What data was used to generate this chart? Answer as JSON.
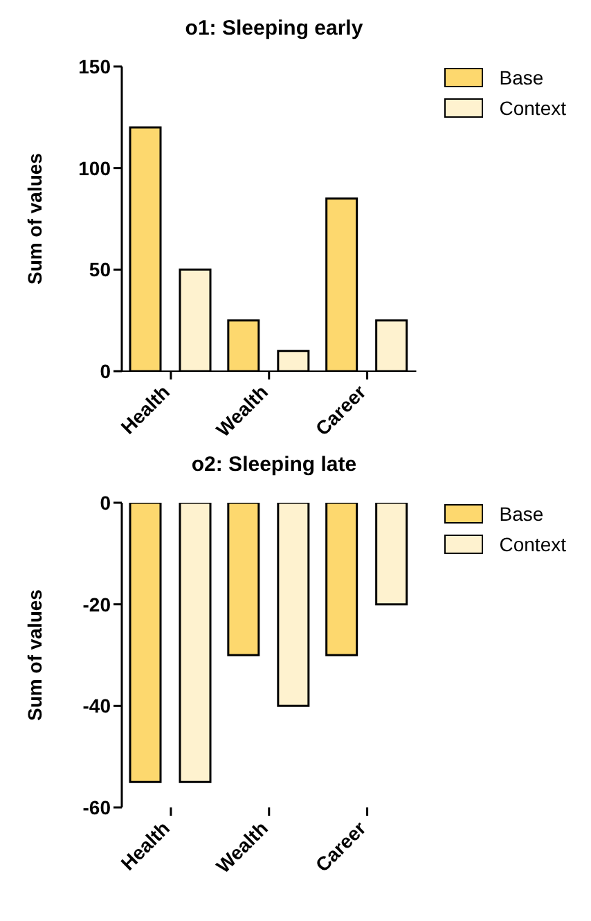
{
  "chart_data": [
    {
      "type": "bar",
      "title": "o1: Sleeping early",
      "ylabel": "Sum of values",
      "categories": [
        "Health",
        "Wealth",
        "Career"
      ],
      "series": [
        {
          "name": "Base",
          "color": "#fdd86e",
          "values": [
            120,
            25,
            85
          ]
        },
        {
          "name": "Context",
          "color": "#fef2cf",
          "values": [
            50,
            10,
            25
          ]
        }
      ],
      "ylim": [
        0,
        150
      ],
      "yticks": [
        0,
        50,
        100,
        150
      ],
      "grid": false,
      "legend": "top right"
    },
    {
      "type": "bar",
      "title": "o2: Sleeping late",
      "ylabel": "Sum of values",
      "categories": [
        "Health",
        "Wealth",
        "Career"
      ],
      "series": [
        {
          "name": "Base",
          "color": "#fdd86e",
          "values": [
            -55,
            -30,
            -30
          ]
        },
        {
          "name": "Context",
          "color": "#fef2cf",
          "values": [
            -55,
            -40,
            -20
          ]
        }
      ],
      "ylim": [
        -60,
        0
      ],
      "yticks": [
        -60,
        -40,
        -20,
        0
      ],
      "grid": false,
      "legend": "top right"
    }
  ]
}
